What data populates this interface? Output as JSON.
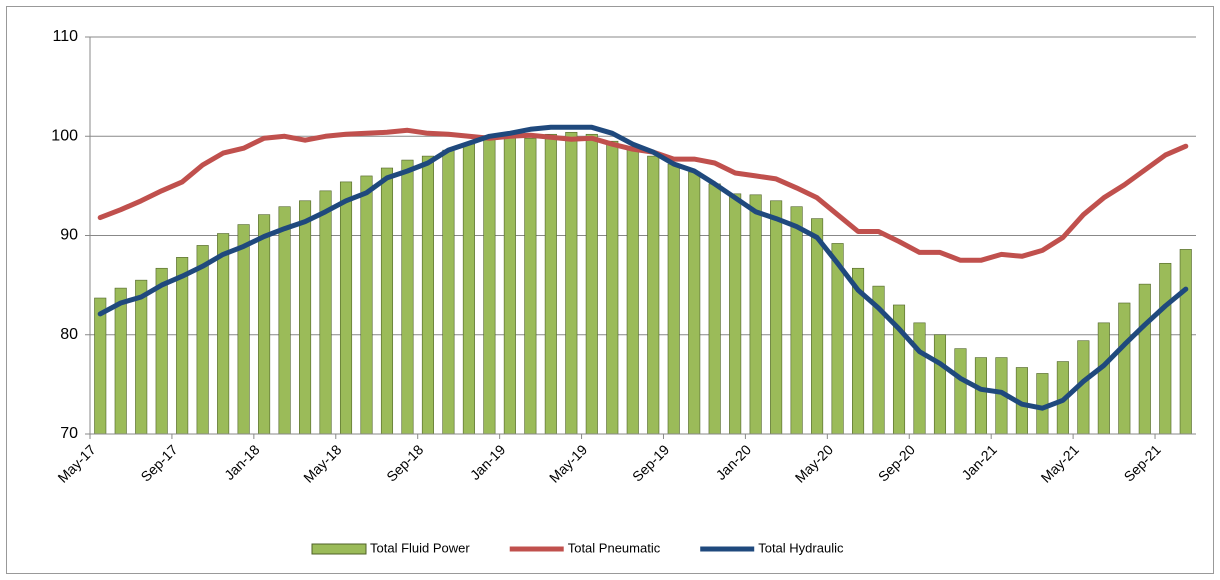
{
  "chart_data": {
    "type": "bar",
    "categories": [
      "May-17",
      null,
      null,
      null,
      "Sep-17",
      null,
      null,
      null,
      "Jan-18",
      null,
      null,
      null,
      "May-18",
      null,
      null,
      null,
      "Sep-18",
      null,
      null,
      null,
      "Jan-19",
      null,
      null,
      null,
      "May-19",
      null,
      null,
      null,
      "Sep-19",
      null,
      null,
      null,
      "Jan-20",
      null,
      null,
      null,
      "May-20",
      null,
      null,
      null,
      "Sep-20",
      null,
      null,
      null,
      "Jan-21",
      null,
      null,
      null,
      "May-21",
      null,
      null,
      null,
      "Sep-21",
      null
    ],
    "series": [
      {
        "name": "Total Fluid Power",
        "type": "bar",
        "color": "#9bbb59",
        "values": [
          83.7,
          84.7,
          85.5,
          86.7,
          87.8,
          89.0,
          90.2,
          91.1,
          92.1,
          92.9,
          93.5,
          94.5,
          95.4,
          96.0,
          96.8,
          97.6,
          98.0,
          98.6,
          99.2,
          99.8,
          100.0,
          99.8,
          100.2,
          100.4,
          100.2,
          99.5,
          98.9,
          98.0,
          97.2,
          96.4,
          95.2,
          94.2,
          94.1,
          93.5,
          92.9,
          91.7,
          89.2,
          86.7,
          84.9,
          83.0,
          81.2,
          80.0,
          78.6,
          77.7,
          77.7,
          76.7,
          76.1,
          77.3,
          79.4,
          81.2,
          83.2,
          85.1,
          87.2,
          88.6
        ]
      },
      {
        "name": "Total Pneumatic",
        "type": "line",
        "color": "#c0504d",
        "values": [
          91.8,
          92.6,
          93.5,
          94.5,
          95.4,
          97.1,
          98.3,
          98.8,
          99.8,
          100.0,
          99.6,
          100.0,
          100.2,
          100.3,
          100.4,
          100.6,
          100.3,
          100.2,
          100.0,
          99.8,
          100.0,
          100.1,
          99.9,
          99.7,
          99.8,
          99.2,
          98.7,
          98.4,
          97.7,
          97.7,
          97.3,
          96.3,
          96.0,
          95.7,
          94.8,
          93.8,
          92.1,
          90.4,
          90.4,
          89.4,
          88.3,
          88.3,
          87.5,
          87.5,
          88.1,
          87.9,
          88.5,
          89.8,
          92.1,
          93.8,
          95.1,
          96.6,
          98.1,
          99.0
        ]
      },
      {
        "name": "Total Hydraulic",
        "type": "line",
        "color": "#1f497d",
        "values": [
          82.1,
          83.2,
          83.8,
          85.0,
          85.9,
          86.9,
          88.1,
          88.9,
          89.9,
          90.7,
          91.4,
          92.4,
          93.5,
          94.3,
          95.8,
          96.5,
          97.3,
          98.6,
          99.3,
          100.0,
          100.3,
          100.7,
          100.9,
          100.9,
          100.9,
          100.3,
          99.2,
          98.4,
          97.2,
          96.5,
          95.2,
          93.8,
          92.4,
          91.7,
          90.9,
          89.8,
          87.2,
          84.5,
          82.7,
          80.6,
          78.3,
          77.1,
          75.6,
          74.5,
          74.2,
          73.0,
          72.6,
          73.4,
          75.3,
          76.9,
          79.0,
          81.0,
          82.9,
          84.6
        ]
      }
    ],
    "ylim": [
      70,
      110
    ],
    "yticks": [
      70,
      80,
      90,
      100,
      110
    ],
    "grid": true,
    "legend": "bottom"
  }
}
